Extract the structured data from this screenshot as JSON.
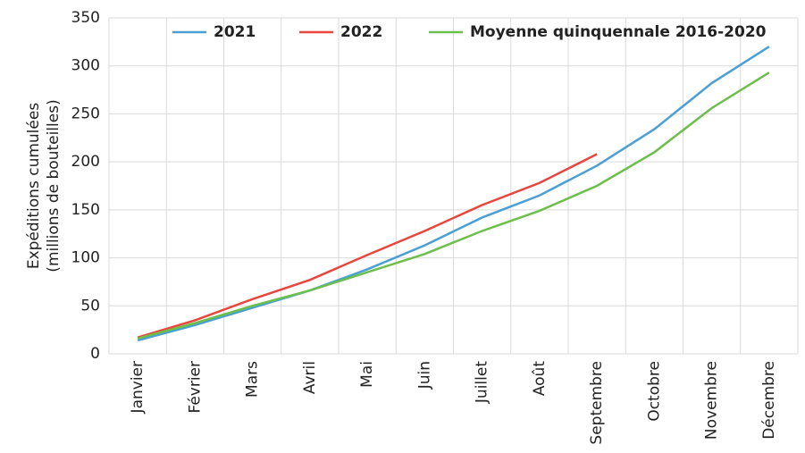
{
  "chart_data": {
    "type": "line",
    "y_label": [
      "Expéditions cumulées",
      "(millions de bouteilles)"
    ],
    "categories": [
      "Janvier",
      "Février",
      "Mars",
      "Avril",
      "Mai",
      "Juin",
      "Juillet",
      "Août",
      "Septembre",
      "Octobre",
      "Novembre",
      "Décembre"
    ],
    "series": [
      {
        "name": "2021",
        "color": "#4a9fd4",
        "values": [
          14,
          30,
          48,
          66,
          88,
          113,
          142,
          165,
          196,
          234,
          282,
          320
        ]
      },
      {
        "name": "2022",
        "color": "#e8453c",
        "values": [
          17,
          35,
          57,
          77,
          103,
          128,
          155,
          178,
          208,
          null,
          null,
          null
        ]
      },
      {
        "name": "Moyenne quinquennale 2016-2020",
        "color": "#6cbf4a",
        "values": [
          16,
          32,
          50,
          66,
          85,
          104,
          128,
          149,
          175,
          210,
          256,
          293
        ]
      }
    ],
    "ylim": [
      0,
      350
    ],
    "yticks": [
      0,
      50,
      100,
      150,
      200,
      250,
      300,
      350
    ],
    "grid": true,
    "legend": "top"
  }
}
